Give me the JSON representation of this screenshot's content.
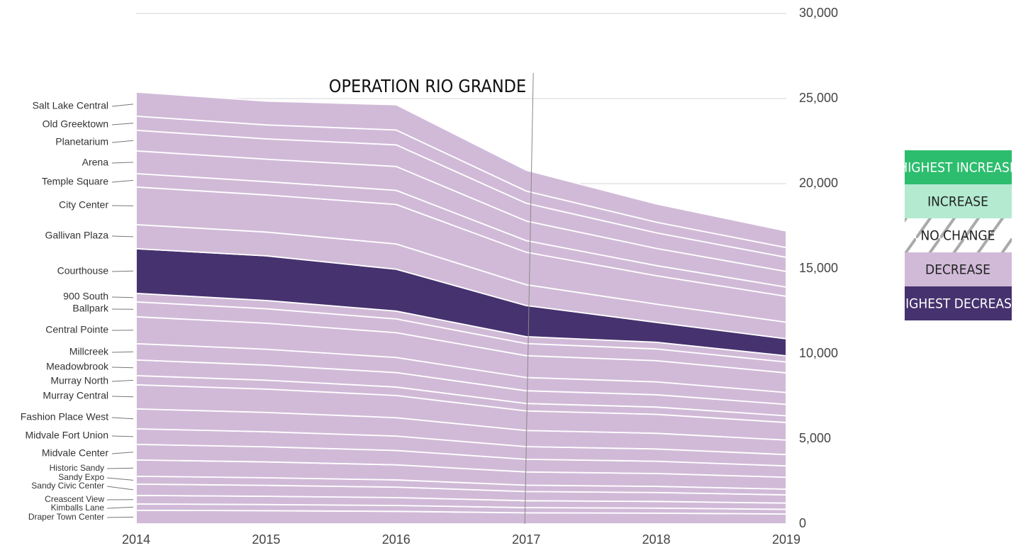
{
  "chart_data": {
    "type": "stacked_area",
    "annotation": "OPERATION RIO GRANDE",
    "annotation_x": "2017",
    "categories": [
      "2014",
      "2015",
      "2016",
      "2017",
      "2018",
      "2019"
    ],
    "ylim": [
      0,
      30000
    ],
    "yticks": [
      0,
      {
        "value": 5000,
        "label": "5,000"
      },
      {
        "value": 10000,
        "label": "10,000"
      },
      {
        "value": 15000,
        "label": "15,000"
      },
      {
        "value": 20000,
        "label": "20,000"
      },
      {
        "value": 25000,
        "label": "25,000"
      },
      {
        "value": 30000,
        "label": "30,000"
      }
    ],
    "grid": true,
    "legend": [
      {
        "name": "HIGHEST INCREASE",
        "color": "#2dbd6e"
      },
      {
        "name": "INCREASE",
        "color": "#b3ead0"
      },
      {
        "name": "NO CHANGE",
        "color": "striped"
      },
      {
        "name": "DECREASE",
        "color": "#d1bad8"
      },
      {
        "name": "HIGHEST DECREASE",
        "color": "#46326f"
      }
    ],
    "series": [
      {
        "name": "Draper Town Center",
        "color": "#d1bad8",
        "values": [
          800,
          775,
          738,
          650,
          630,
          583
        ]
      },
      {
        "name": "Kimballs Lane",
        "color": "#d1bad8",
        "values": [
          375,
          363,
          346,
          305,
          296,
          273
        ]
      },
      {
        "name": "Creascent View",
        "color": "#d1bad8",
        "values": [
          500,
          485,
          462,
          406,
          394,
          365
        ]
      },
      {
        "name": "Sandy Civic Center",
        "color": "#d1bad8",
        "values": [
          665,
          644,
          614,
          540,
          524,
          485
        ]
      },
      {
        "name": "Sandy Expo",
        "color": "#d1bad8",
        "values": [
          460,
          446,
          425,
          374,
          362,
          335
        ]
      },
      {
        "name": "Historic Sandy",
        "color": "#d1bad8",
        "values": [
          960,
          930,
          886,
          780,
          756,
          700
        ]
      },
      {
        "name": "Midvale Center",
        "color": "#d1bad8",
        "values": [
          915,
          887,
          845,
          743,
          721,
          667
        ]
      },
      {
        "name": "Midvale Fort Union",
        "color": "#d1bad8",
        "values": [
          915,
          887,
          845,
          743,
          721,
          667
        ]
      },
      {
        "name": "Fashion Place West",
        "color": "#d1bad8",
        "values": [
          1170,
          1134,
          1080,
          950,
          922,
          853
        ]
      },
      {
        "name": "Murray Central",
        "color": "#d1bad8",
        "values": [
          1415,
          1371,
          1306,
          1149,
          1115,
          1032
        ]
      },
      {
        "name": "Murray North",
        "color": "#d1bad8",
        "values": [
          540,
          523,
          498,
          438,
          426,
          394
        ]
      },
      {
        "name": "Meadowbrook",
        "color": "#d1bad8",
        "values": [
          920,
          891,
          849,
          747,
          725,
          671
        ]
      },
      {
        "name": "Millcreek",
        "color": "#d1bad8",
        "values": [
          960,
          930,
          886,
          780,
          756,
          700
        ]
      },
      {
        "name": "Central Pointe",
        "color": "#d1bad8",
        "values": [
          1580,
          1531,
          1458,
          1283,
          1245,
          1152
        ]
      },
      {
        "name": "Ballpark",
        "color": "#d1bad8",
        "values": [
          875,
          848,
          808,
          711,
          690,
          638
        ]
      },
      {
        "name": "900 South",
        "color": "#d1bad8",
        "values": [
          500,
          485,
          462,
          406,
          394,
          365
        ]
      },
      {
        "name": "Courthouse",
        "color": "#46326f",
        "values": [
          2625,
          2625,
          2460,
          1830,
          1170,
          1000
        ]
      },
      {
        "name": "Gallivan Plaza",
        "color": "#d1bad8",
        "values": [
          1415,
          1398,
          1486,
          1223,
          1070,
          974
        ]
      },
      {
        "name": "City Center",
        "color": "#d1bad8",
        "values": [
          2210,
          2183,
          2321,
          1909,
          1671,
          1520
        ]
      },
      {
        "name": "Temple Square",
        "color": "#d1bad8",
        "values": [
          790,
          781,
          830,
          683,
          597,
          544
        ]
      },
      {
        "name": "Arena",
        "color": "#d1bad8",
        "values": [
          1335,
          1319,
          1402,
          1153,
          1009,
          918
        ]
      },
      {
        "name": "Planetarium",
        "color": "#d1bad8",
        "values": [
          1210,
          1195,
          1271,
          1045,
          915,
          832
        ]
      },
      {
        "name": "Old Greektown",
        "color": "#d1bad8",
        "values": [
          830,
          820,
          872,
          717,
          627,
          571
        ]
      },
      {
        "name": "Salt Lake Central",
        "color": "#d1bad8",
        "values": [
          1415,
          1398,
          1486,
          1223,
          1070,
          974
        ]
      }
    ]
  }
}
